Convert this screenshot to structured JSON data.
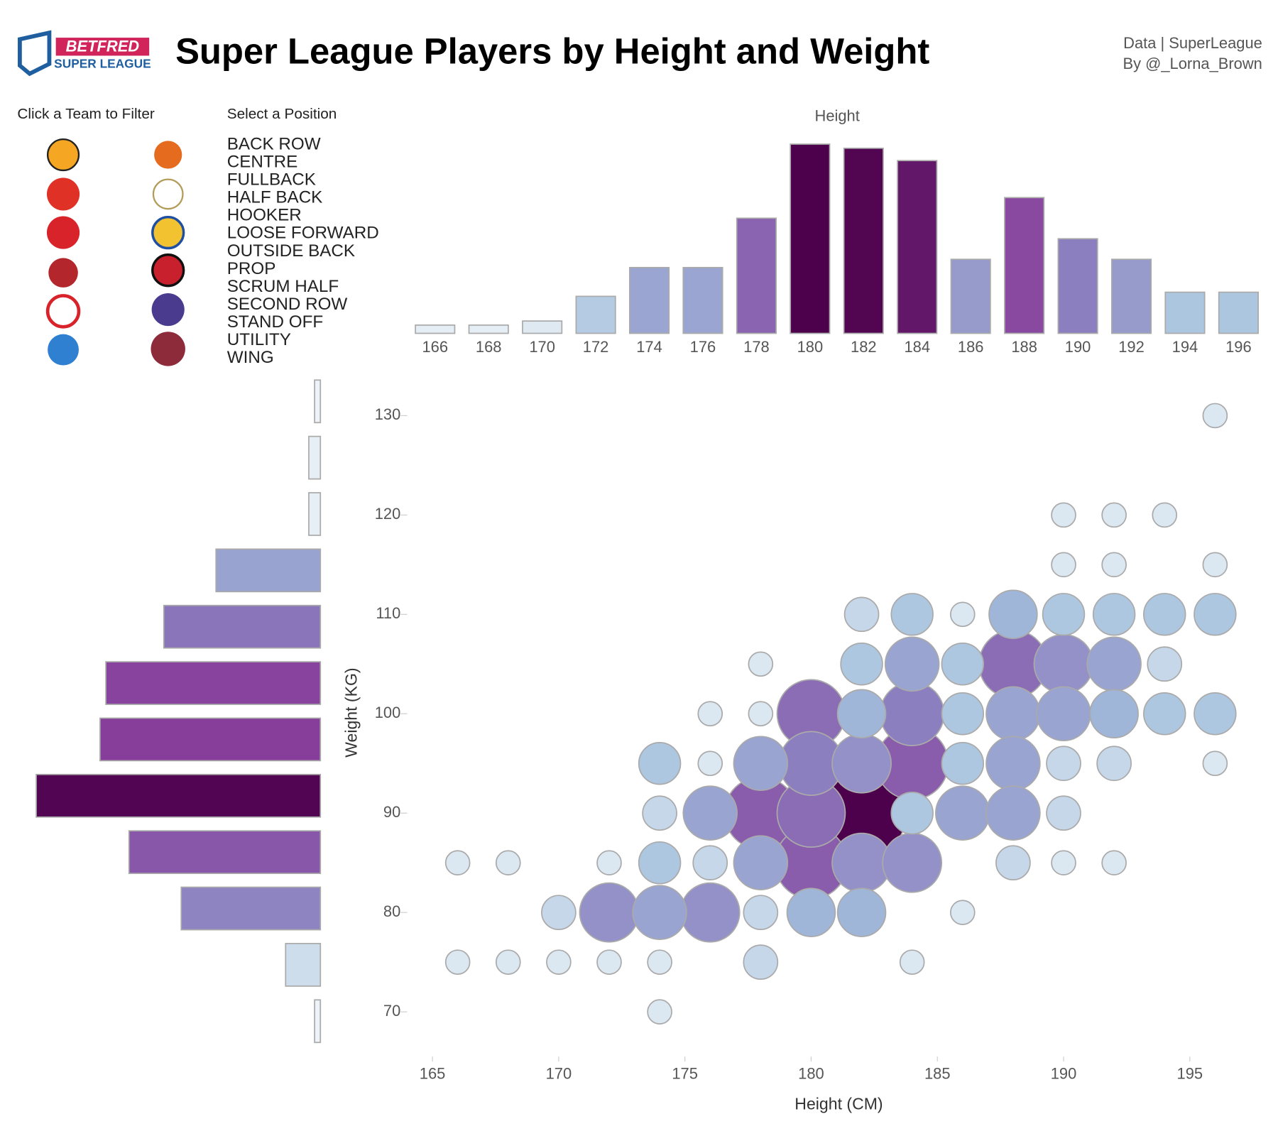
{
  "header": {
    "logo_top": "BETFRED",
    "logo_bottom": "SUPER LEAGUE",
    "title": "Super League Players by Height and Weight",
    "source": "Data | SuperLeague",
    "author": "By @_Lorna_Brown"
  },
  "filters": {
    "team_label": "Click a Team to Filter",
    "position_label": "Select a Position",
    "positions": [
      "BACK ROW",
      "CENTRE",
      "FULLBACK",
      "HALF BACK",
      "HOOKER",
      "LOOSE FORWARD",
      "OUTSIDE BACK",
      "PROP",
      "SCRUM HALF",
      "SECOND ROW",
      "STAND OFF",
      "UTILITY",
      "WING"
    ]
  },
  "chart_data": [
    {
      "type": "bar",
      "title": "Height",
      "categories": [
        166,
        168,
        170,
        172,
        174,
        176,
        178,
        180,
        182,
        184,
        186,
        188,
        190,
        192,
        194,
        196
      ],
      "values": [
        2,
        2,
        3,
        9,
        16,
        16,
        28,
        46,
        45,
        42,
        18,
        33,
        23,
        18,
        10,
        10
      ],
      "ylim": [
        0,
        46
      ],
      "colors": [
        "#f3f8fa",
        "#a3bfdc",
        "#8c7fbf",
        "#88419d",
        "#4d004b"
      ]
    },
    {
      "type": "hbar",
      "categories": [
        null,
        null,
        null,
        null,
        null,
        null,
        null,
        null,
        null,
        null,
        null,
        null
      ],
      "values": [
        1,
        2,
        2,
        18,
        27,
        37,
        38,
        49,
        33,
        24,
        6,
        1
      ],
      "xlim": [
        0,
        50
      ],
      "colors": [
        "#f3f8fa",
        "#a3bfdc",
        "#8c7fbf",
        "#88419d",
        "#4d004b"
      ]
    },
    {
      "type": "bubble",
      "x_label": "Height (CM)",
      "y_label": "Weight (KG)",
      "x": [
        196,
        190,
        192,
        194,
        190,
        192,
        196,
        182,
        184,
        186,
        188,
        190,
        192,
        194,
        196,
        178,
        182,
        184,
        186,
        188,
        190,
        192,
        194,
        176,
        178,
        180,
        182,
        184,
        186,
        188,
        190,
        192,
        194,
        196,
        174,
        176,
        178,
        180,
        182,
        184,
        186,
        188,
        190,
        192,
        196,
        174,
        176,
        178,
        180,
        182,
        184,
        186,
        188,
        190,
        166,
        168,
        172,
        174,
        176,
        178,
        180,
        182,
        184,
        188,
        190,
        192,
        170,
        172,
        174,
        176,
        178,
        180,
        182,
        186,
        166,
        168,
        170,
        172,
        174,
        178,
        184,
        174
      ],
      "y": [
        130,
        120,
        120,
        120,
        115,
        115,
        115,
        110,
        110,
        110,
        110,
        110,
        110,
        110,
        110,
        105,
        105,
        105,
        105,
        105,
        105,
        105,
        105,
        100,
        100,
        100,
        100,
        100,
        100,
        100,
        100,
        100,
        100,
        100,
        95,
        95,
        95,
        95,
        95,
        95,
        95,
        95,
        95,
        95,
        95,
        90,
        90,
        90,
        90,
        90,
        90,
        90,
        90,
        90,
        85,
        85,
        85,
        85,
        85,
        85,
        85,
        85,
        85,
        85,
        85,
        85,
        80,
        80,
        80,
        80,
        80,
        80,
        80,
        80,
        75,
        75,
        75,
        75,
        75,
        75,
        75,
        70
      ],
      "sizes": [
        1,
        1,
        1,
        1,
        1,
        1,
        1,
        2,
        3,
        1,
        4,
        3,
        3,
        3,
        3,
        1,
        3,
        5,
        3,
        8,
        6,
        5,
        2,
        1,
        1,
        8,
        4,
        7,
        3,
        5,
        5,
        4,
        3,
        3,
        3,
        1,
        5,
        7,
        6,
        9,
        3,
        5,
        2,
        2,
        1,
        2,
        5,
        9,
        8,
        14,
        3,
        5,
        5,
        2,
        1,
        1,
        1,
        3,
        2,
        5,
        9,
        6,
        6,
        2,
        1,
        1,
        2,
        6,
        5,
        6,
        2,
        4,
        4,
        1,
        1,
        1,
        1,
        1,
        1,
        2,
        1,
        1
      ],
      "xlim": [
        164,
        198
      ],
      "ylim": [
        65.5,
        133.5
      ],
      "xticks": [
        165,
        170,
        175,
        180,
        185,
        190,
        195
      ],
      "yticks": [
        70,
        80,
        90,
        100,
        110,
        120,
        130
      ],
      "colors": [
        "#f3f8fa",
        "#a3bfdc",
        "#8c7fbf",
        "#88419d",
        "#4d004b"
      ]
    }
  ]
}
